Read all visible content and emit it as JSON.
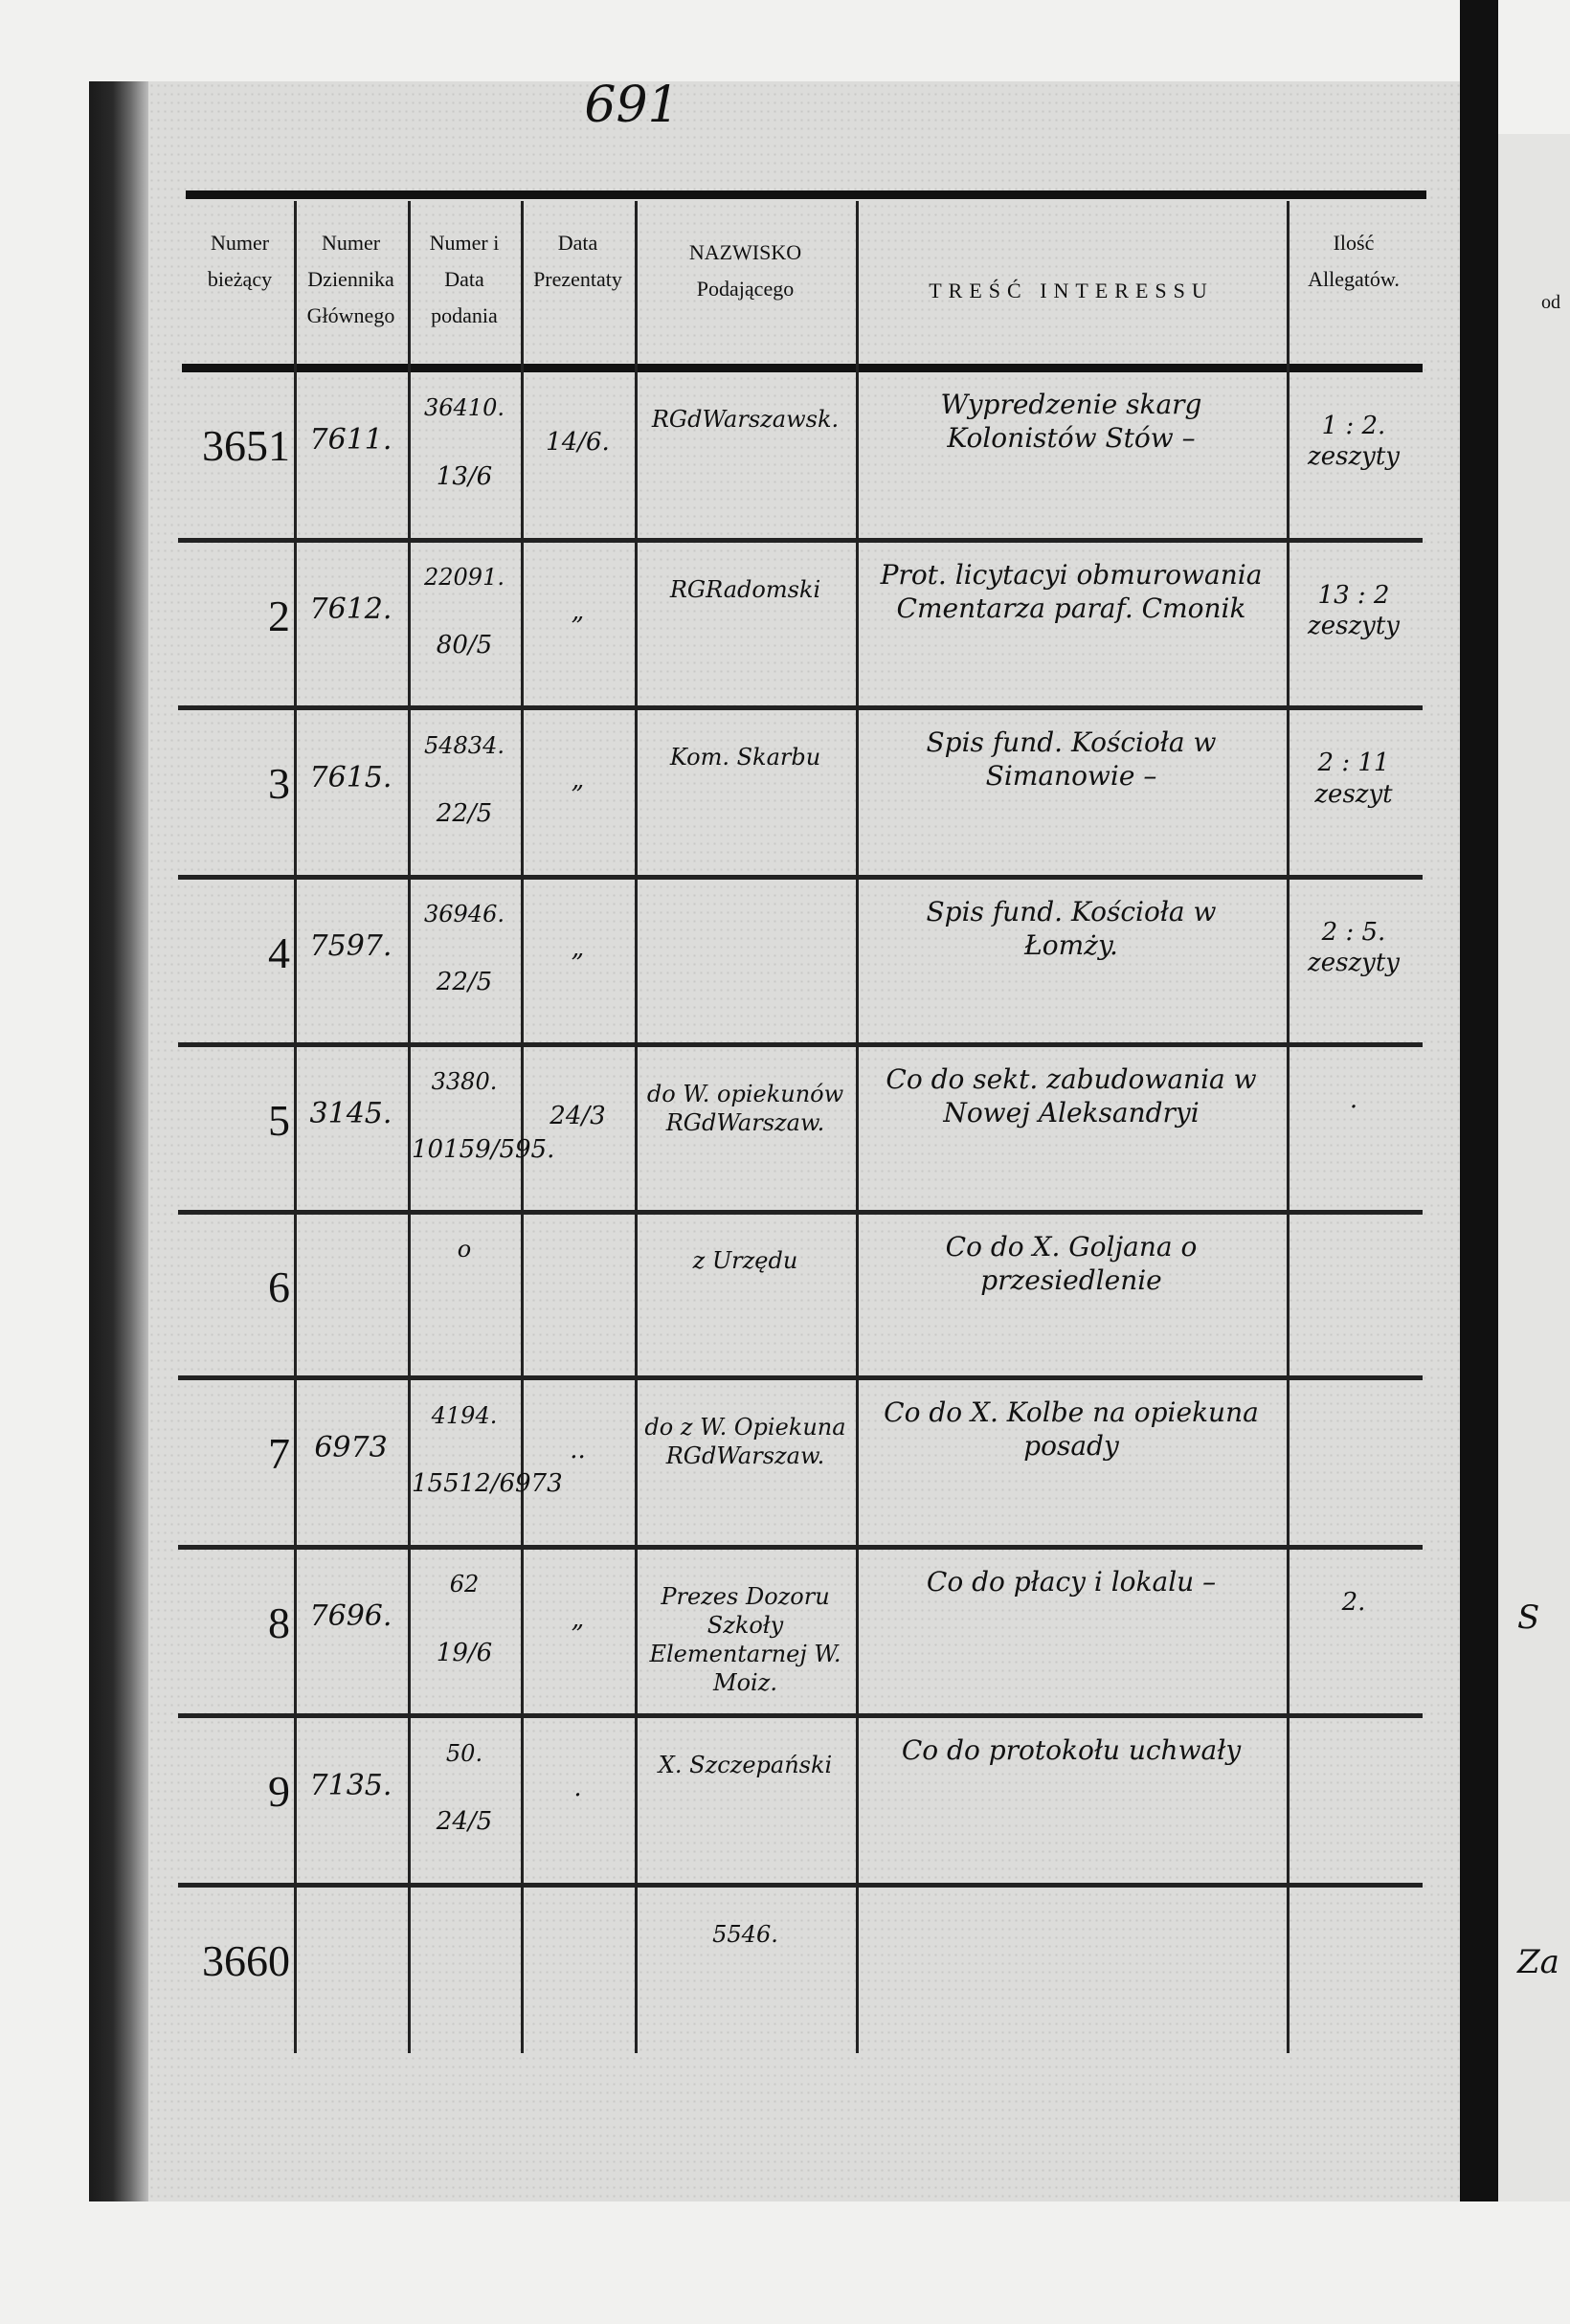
{
  "page_number": "691",
  "columns": [
    "Numer bieżący",
    "Numer Dziennika Głównego",
    "Numer i Data podania",
    "Data Prezentaty",
    "NAZWISKO Podającego",
    "TREŚĆ INTERESSU",
    "Ilość Allegatów."
  ],
  "rows": [
    {
      "numer": "3651",
      "dziennik": "7611.",
      "podanie": "36410.",
      "podanie_data": "13/6",
      "prezentata": "14/6.",
      "nazwisko": "RGdWarszawsk.",
      "tresc": "Wypredzenie skarg Kolonistów Stów –",
      "allegaty": "1 : 2. zeszyty"
    },
    {
      "numer": "2",
      "dziennik": "7612.",
      "podanie": "22091.",
      "podanie_data": "80/5",
      "prezentata": "„",
      "nazwisko": "RGRadomski",
      "tresc": "Prot. licytacyi obmurowania Cmentarza paraf. Cmonik",
      "allegaty": "13 : 2 zeszyty"
    },
    {
      "numer": "3",
      "dziennik": "7615.",
      "podanie": "54834.",
      "podanie_data": "22/5",
      "prezentata": "„",
      "nazwisko": "Kom. Skarbu",
      "tresc": "Spis fund. Kościoła w Simanowie –",
      "allegaty": "2 : 11 zeszyt"
    },
    {
      "numer": "4",
      "dziennik": "7597.",
      "podanie": "36946.",
      "podanie_data": "22/5",
      "prezentata": "„",
      "nazwisko": "",
      "tresc": "Spis fund. Kościoła w Łomży.",
      "allegaty": "2 : 5. zeszyty"
    },
    {
      "numer": "5",
      "dziennik": "3145.",
      "podanie": "3380.",
      "podanie_data": "10159/595.",
      "prezentata": "24/3",
      "nazwisko": "do W. opiekunów RGdWarszaw.",
      "tresc": "Co do sekt. zabudowania w Nowej Aleksandryi",
      "allegaty": "."
    },
    {
      "numer": "6",
      "dziennik": "",
      "podanie": "o",
      "podanie_data": "",
      "prezentata": "",
      "nazwisko": "z Urzędu",
      "tresc": "Co do X. Goljana o przesiedlenie",
      "allegaty": ""
    },
    {
      "numer": "7",
      "dziennik": "6973",
      "podanie": "4194.",
      "podanie_data": "15512/6973",
      "prezentata": "..",
      "nazwisko": "do z W. Opiekuna RGdWarszaw.",
      "tresc": "Co do X. Kolbe na opiekuna posady",
      "allegaty": ""
    },
    {
      "numer": "8",
      "dziennik": "7696.",
      "podanie": "62",
      "podanie_data": "19/6",
      "prezentata": "„",
      "nazwisko": "Prezes Dozoru Szkoły Elementarnej W. Moiz.",
      "tresc": "Co do płacy i lokalu –",
      "allegaty": "2."
    },
    {
      "numer": "9",
      "dziennik": "7135.",
      "podanie": "50.",
      "podanie_data": "24/5",
      "prezentata": ".",
      "nazwisko": "X. Szczepański",
      "tresc": "Co do protokołu uchwały",
      "allegaty": ""
    },
    {
      "numer": "3660",
      "dziennik": "",
      "podanie": "",
      "podanie_data": "",
      "prezentata": "",
      "nazwisko": "5546.",
      "tresc": "",
      "allegaty": ""
    }
  ],
  "next_page_fragments": {
    "header": "od",
    "row8": "S",
    "row10": "Za"
  }
}
